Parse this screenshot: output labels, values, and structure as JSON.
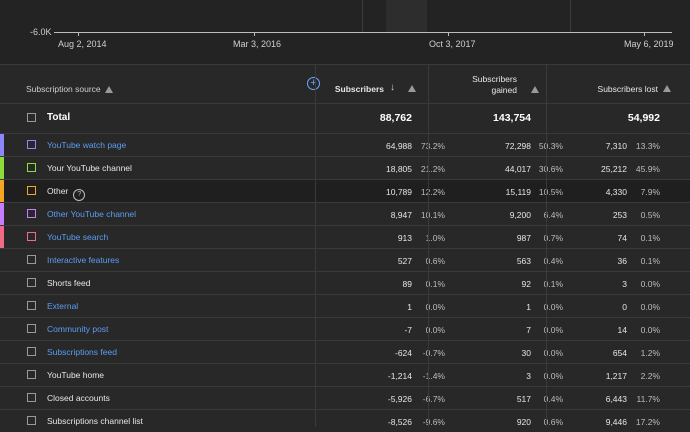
{
  "chart": {
    "y_label": "-6.0K",
    "x_ticks": [
      "Aug 2, 2014",
      "Mar 3, 2016",
      "Oct 3, 2017",
      "May 6, 2019"
    ]
  },
  "table": {
    "headers": {
      "source": "Subscription source",
      "subscribers": "Subscribers",
      "gained_1": "Subscribers",
      "gained_2": "gained",
      "lost": "Subscribers lost"
    },
    "total": {
      "label": "Total",
      "subscribers": "88,762",
      "gained": "143,754",
      "lost": "54,992"
    },
    "rows": [
      {
        "label": "YouTube watch page",
        "link": true,
        "color": "#8e86ff",
        "subs": "64,988",
        "subs_pct": "73.2%",
        "gained": "72,298",
        "gained_pct": "50.3%",
        "lost": "7,310",
        "lost_pct": "13.3%"
      },
      {
        "label": "Your YouTube channel",
        "link": false,
        "color": "#8ddc3a",
        "subs": "18,805",
        "subs_pct": "21.2%",
        "gained": "44,017",
        "gained_pct": "30.6%",
        "lost": "25,212",
        "lost_pct": "45.9%"
      },
      {
        "label": "Other",
        "link": false,
        "color": "#f5a623",
        "help": "?",
        "subs": "10,789",
        "subs_pct": "12.2%",
        "gained": "15,119",
        "gained_pct": "10.5%",
        "lost": "4,330",
        "lost_pct": "7.9%"
      },
      {
        "label": "Other YouTube channel",
        "link": true,
        "color": "#c77dff",
        "subs": "8,947",
        "subs_pct": "10.1%",
        "gained": "9,200",
        "gained_pct": "6.4%",
        "lost": "253",
        "lost_pct": "0.5%"
      },
      {
        "label": "YouTube search",
        "link": true,
        "color": "#f06a86",
        "subs": "913",
        "subs_pct": "1.0%",
        "gained": "987",
        "gained_pct": "0.7%",
        "lost": "74",
        "lost_pct": "0.1%"
      },
      {
        "label": "Interactive features",
        "link": true,
        "subs": "527",
        "subs_pct": "0.6%",
        "gained": "563",
        "gained_pct": "0.4%",
        "lost": "36",
        "lost_pct": "0.1%"
      },
      {
        "label": "Shorts feed",
        "link": false,
        "subs": "89",
        "subs_pct": "0.1%",
        "gained": "92",
        "gained_pct": "0.1%",
        "lost": "3",
        "lost_pct": "0.0%"
      },
      {
        "label": "External",
        "link": true,
        "subs": "1",
        "subs_pct": "0.0%",
        "gained": "1",
        "gained_pct": "0.0%",
        "lost": "0",
        "lost_pct": "0.0%"
      },
      {
        "label": "Community post",
        "link": true,
        "subs": "-7",
        "subs_pct": "0.0%",
        "gained": "7",
        "gained_pct": "0.0%",
        "lost": "14",
        "lost_pct": "0.0%"
      },
      {
        "label": "Subscriptions feed",
        "link": true,
        "subs": "-624",
        "subs_pct": "-0.7%",
        "gained": "30",
        "gained_pct": "0.0%",
        "lost": "654",
        "lost_pct": "1.2%"
      },
      {
        "label": "YouTube home",
        "link": false,
        "subs": "-1,214",
        "subs_pct": "-1.4%",
        "gained": "3",
        "gained_pct": "0.0%",
        "lost": "1,217",
        "lost_pct": "2.2%"
      },
      {
        "label": "Closed accounts",
        "link": false,
        "subs": "-5,926",
        "subs_pct": "-6.7%",
        "gained": "517",
        "gained_pct": "0.4%",
        "lost": "6,443",
        "lost_pct": "11.7%"
      },
      {
        "label": "Subscriptions channel list",
        "link": false,
        "subs": "-8,526",
        "subs_pct": "-9.6%",
        "gained": "920",
        "gained_pct": "0.6%",
        "lost": "9,446",
        "lost_pct": "17.2%"
      }
    ]
  }
}
